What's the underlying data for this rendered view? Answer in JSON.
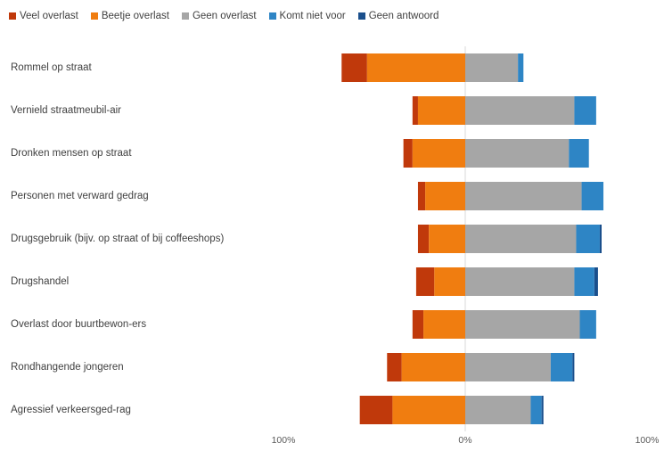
{
  "chart_data": {
    "type": "bar",
    "orientation": "horizontal",
    "stacked": "diverging",
    "legend_position": "top-left",
    "grid": false,
    "title": "",
    "xlabel": "",
    "ylabel": "",
    "xlim": [
      -100,
      100
    ],
    "tick_labels": [
      "100%",
      "0%",
      "100%"
    ],
    "categories": [
      "Rommel op straat",
      "Vernield straatmeubil-air",
      "Dronken mensen op straat",
      "Personen met verward gedrag",
      "Drugsgebruik (bijv. op straat of bij coffeeshops)",
      "Drugshandel",
      "Overlast door buurtbewon-ers",
      "Rondhangende jongeren",
      "Agressief verkeersged-rag"
    ],
    "series": [
      {
        "name": "Veel overlast",
        "color": "#c0390b",
        "values": [
          14,
          3,
          5,
          4,
          6,
          10,
          6,
          8,
          18
        ]
      },
      {
        "name": "Beetje overlast",
        "color": "#f07d10",
        "values": [
          54,
          26,
          29,
          22,
          20,
          17,
          23,
          35,
          40
        ]
      },
      {
        "name": "Geen overlast",
        "color": "#a6a6a6",
        "values": [
          29,
          60,
          57,
          64,
          61,
          60,
          63,
          47,
          36
        ]
      },
      {
        "name": "Komt niet voor",
        "color": "#2e85c5",
        "values": [
          3,
          12,
          11,
          12,
          13,
          11,
          9,
          12,
          6
        ]
      },
      {
        "name": "Geen antwoord",
        "color": "#1a4f8c",
        "values": [
          0,
          0,
          0,
          0,
          1,
          2,
          0,
          1,
          1
        ]
      }
    ]
  }
}
